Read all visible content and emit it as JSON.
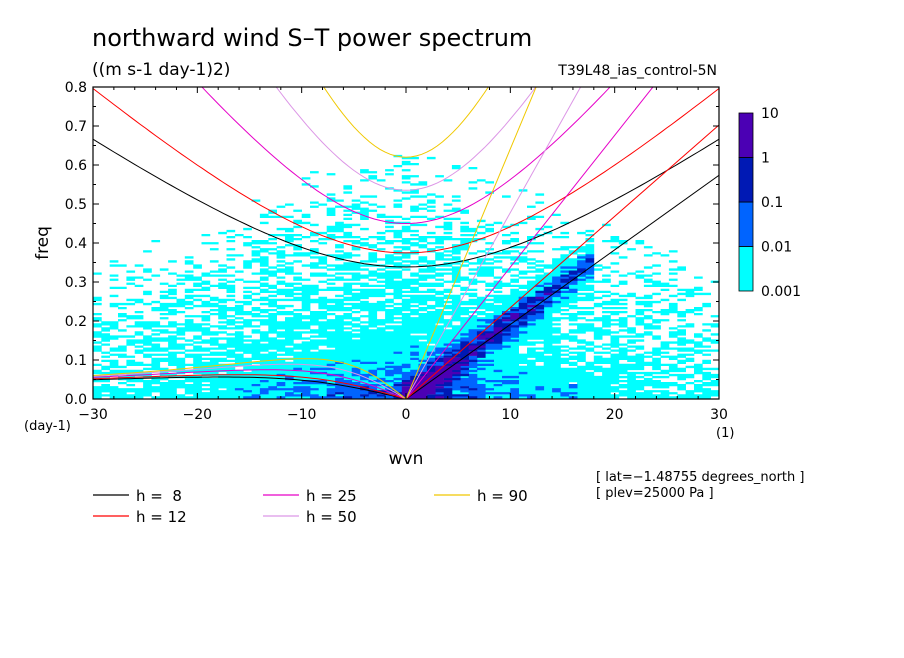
{
  "chart_data": {
    "type": "heatmap",
    "title": "northward wind S–T power spectrum",
    "units": "((m s-1 day-1)2)",
    "experiment": "T39L48_ias_control-5N",
    "xlabel": "wvn",
    "x_unit": "(1)",
    "ylabel": "freq",
    "y_unit": "(day-1)",
    "xlim": [
      -30,
      30
    ],
    "ylim": [
      0,
      0.8
    ],
    "x_ticks": [
      -30,
      -20,
      -10,
      0,
      10,
      20,
      30
    ],
    "y_ticks": [
      0,
      0.1,
      0.2,
      0.3,
      0.4,
      0.5,
      0.6,
      0.7,
      0.8
    ],
    "x_tick_labels": [
      "−30",
      "−20",
      "−10",
      "0",
      "10",
      "20",
      "30"
    ],
    "y_tick_labels": [
      "0.0",
      "0.1",
      "0.2",
      "0.3",
      "0.4",
      "0.5",
      "0.6",
      "0.7",
      "0.8"
    ],
    "colorbar": {
      "levels": [
        0.001,
        0.01,
        0.1,
        1,
        10
      ],
      "labels": [
        "0.001",
        "0.01",
        "0.1",
        "1",
        "10"
      ],
      "colors": [
        "#00ffff",
        "#0064ff",
        "#0019b4",
        "#4b00b4"
      ]
    },
    "series": [
      {
        "name": "h =  8",
        "h": 8,
        "color": "#000000"
      },
      {
        "name": "h = 12",
        "h": 12,
        "color": "#ff0000"
      },
      {
        "name": "h = 25",
        "h": 25,
        "color": "#e600c8"
      },
      {
        "name": "h = 50",
        "h": 50,
        "color": "#dc96e6"
      },
      {
        "name": "h = 90",
        "h": 90,
        "color": "#f0c800"
      }
    ],
    "annotations": [
      "[ lat=−1.48755 degrees_north ]",
      "[ plev=25000 Pa ]"
    ]
  }
}
